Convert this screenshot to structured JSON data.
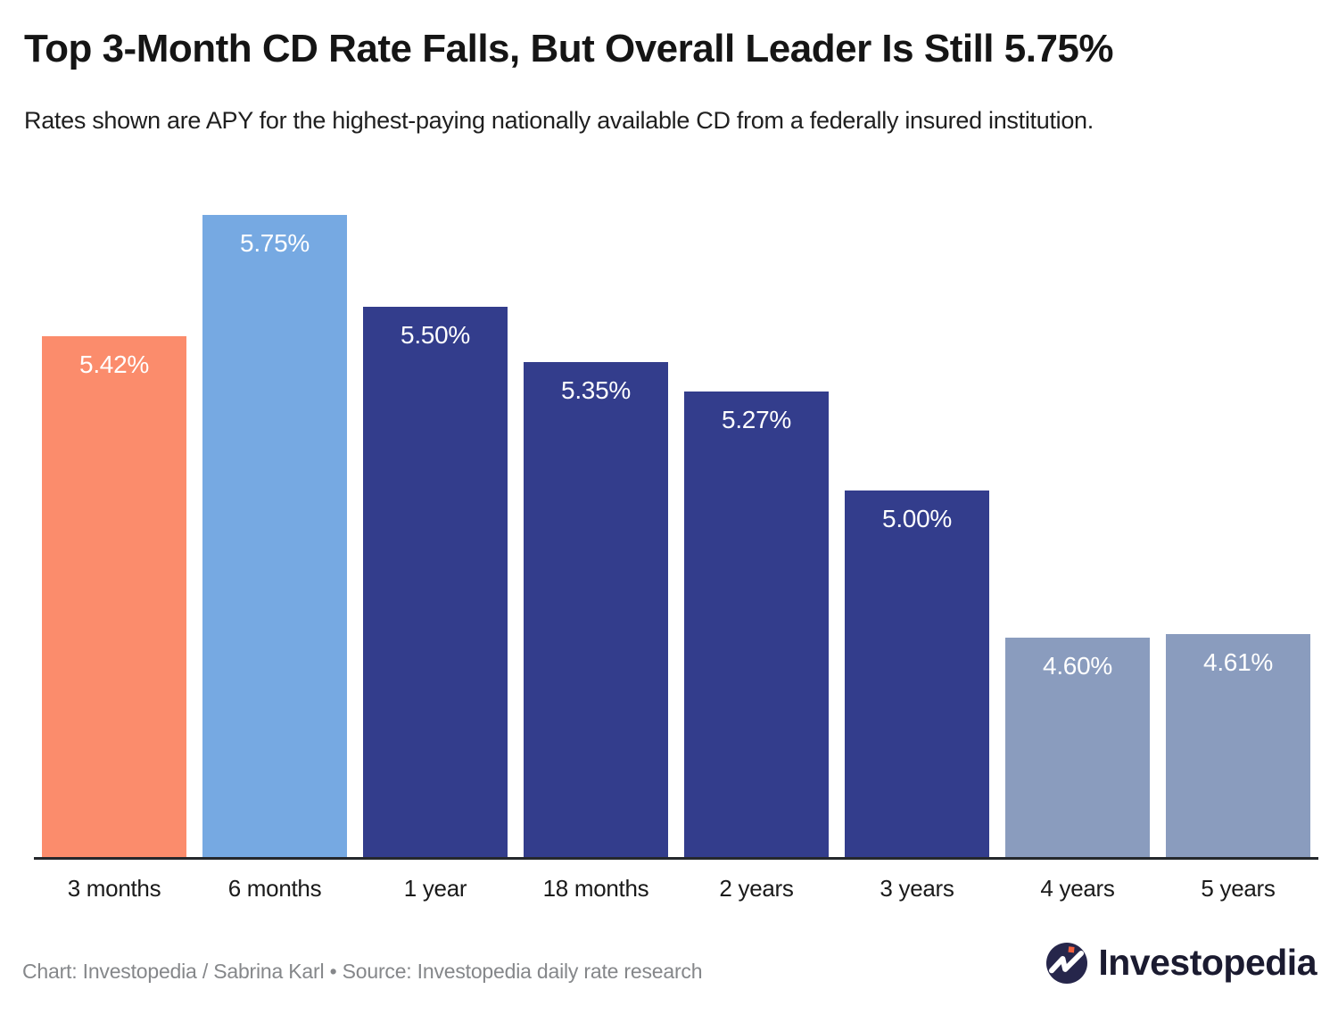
{
  "header": {
    "title": "Top 3-Month CD Rate Falls, But Overall Leader Is Still 5.75%",
    "subtitle": "Rates shown are APY for the highest-paying nationally available CD from a federally insured institution."
  },
  "chart_data": {
    "type": "bar",
    "categories": [
      "3 months",
      "6 months",
      "1 year",
      "18 months",
      "2 years",
      "3 years",
      "4 years",
      "5 years"
    ],
    "values": [
      5.42,
      5.75,
      5.5,
      5.35,
      5.27,
      5.0,
      4.6,
      4.61
    ],
    "value_labels": [
      "5.42%",
      "5.75%",
      "5.50%",
      "5.35%",
      "5.27%",
      "5.00%",
      "4.60%",
      "4.61%"
    ],
    "bar_colors": [
      "#FB8C6C",
      "#76A9E2",
      "#333D8C",
      "#333D8C",
      "#333D8C",
      "#333D8C",
      "#8A9CBE",
      "#8A9CBE"
    ],
    "title": "Top 3-Month CD Rate Falls, But Overall Leader Is Still 5.75%",
    "xlabel": "",
    "ylabel": "",
    "ylim": [
      4.0,
      5.8
    ],
    "grid": false,
    "legend": false,
    "value_label_color": "#ffffff",
    "axis_line_color": "#25282c"
  },
  "footer": {
    "credit": "Chart: Investopedia / Sabrina Karl • Source: Investopedia daily rate research",
    "brand_name": "Investopedia"
  },
  "colors": {
    "background": "#ffffff",
    "title_text": "#151515",
    "footer_text": "#85878a",
    "logo_circle": "#26264b",
    "logo_dot": "#f2603d"
  }
}
